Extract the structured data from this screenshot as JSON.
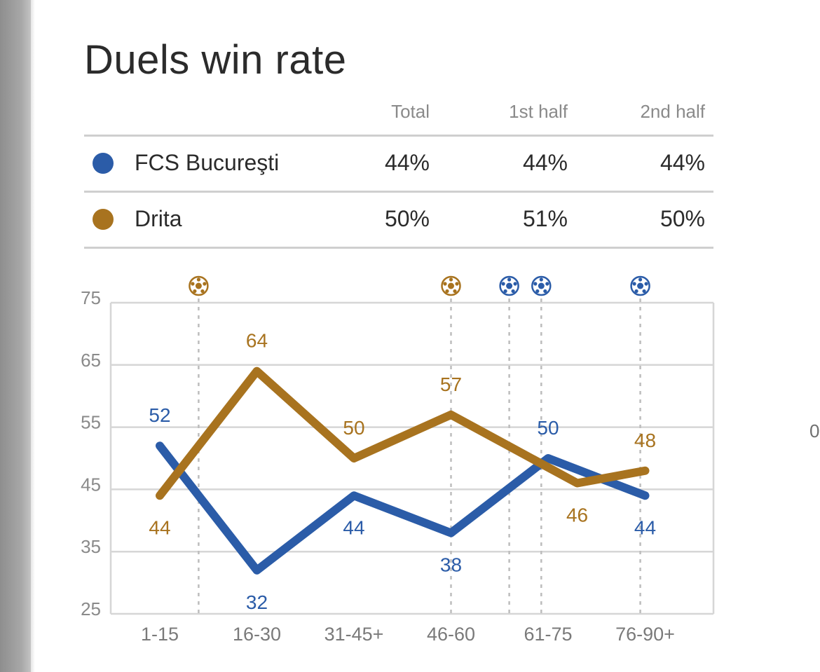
{
  "title": "Duels win rate",
  "stats_table": {
    "columns": [
      "Total",
      "1st half",
      "2nd half"
    ],
    "rows": [
      {
        "team": "FCS Bucureşti",
        "color": "#2b5ca8",
        "values": [
          "44%",
          "44%",
          "44%"
        ]
      },
      {
        "team": "Drita",
        "color": "#a8731f",
        "values": [
          "50%",
          "51%",
          "50%"
        ]
      }
    ]
  },
  "side_fragment": "0",
  "chart_data": {
    "type": "line",
    "title": "Duels win rate",
    "xlabel": "",
    "ylabel": "",
    "categories": [
      "1-15",
      "16-30",
      "31-45+",
      "46-60",
      "61-75",
      "76-90+"
    ],
    "ylim": [
      25,
      75
    ],
    "yticks": [
      75,
      65,
      55,
      45,
      35,
      25
    ],
    "grid": true,
    "series": [
      {
        "name": "FCS Bucureşti",
        "color": "#2b5ca8",
        "x": [
          1,
          2,
          3,
          4,
          5,
          6
        ],
        "values": [
          52,
          32,
          44,
          38,
          50,
          44
        ],
        "labels": [
          "52",
          "32",
          "44",
          "38",
          "50",
          "44"
        ],
        "label_pos": [
          "above",
          "below",
          "below",
          "below",
          "above",
          "below"
        ]
      },
      {
        "name": "Drita",
        "color": "#a8731f",
        "x": [
          1,
          2,
          3,
          4,
          5.3,
          6
        ],
        "values": [
          44,
          64,
          50,
          57,
          46,
          48
        ],
        "labels": [
          "44",
          "64",
          "50",
          "57",
          "46",
          "48"
        ],
        "label_pos": [
          "below",
          "above",
          "above",
          "above",
          "below",
          "above"
        ]
      }
    ],
    "goal_events": [
      {
        "x": 1.4,
        "team": "Drita"
      },
      {
        "x": 4.0,
        "team": "Drita"
      },
      {
        "x": 4.6,
        "team": "FCS Bucureşti"
      },
      {
        "x": 4.93,
        "team": "FCS Bucureşti"
      },
      {
        "x": 5.95,
        "team": "FCS Bucureşti"
      }
    ]
  }
}
